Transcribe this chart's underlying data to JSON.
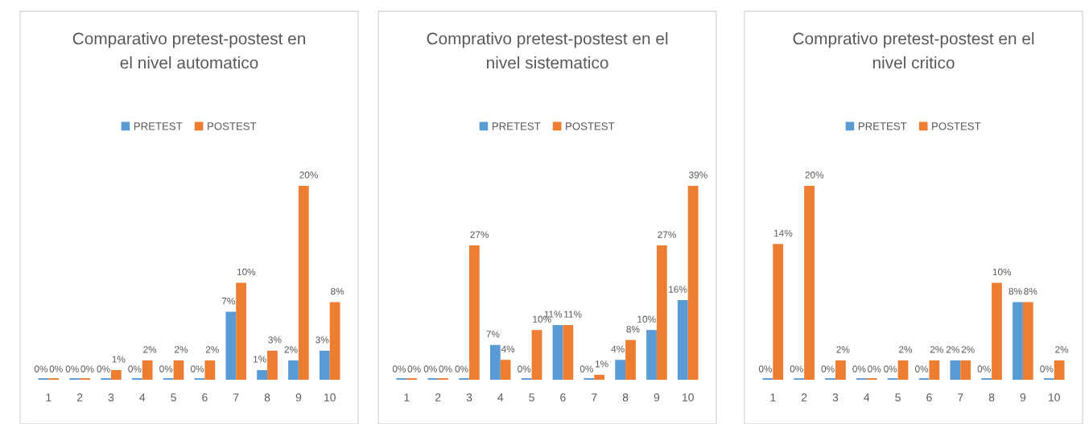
{
  "chart_data": [
    {
      "type": "bar",
      "title": "Comparativo pretest-postest en el nivel automatico",
      "categories": [
        "1",
        "2",
        "3",
        "4",
        "5",
        "6",
        "7",
        "8",
        "9",
        "10"
      ],
      "legend": "top",
      "series": [
        {
          "name": "PRETEST",
          "color": "#5b9bd5",
          "values": [
            0,
            0,
            0,
            0,
            0,
            0,
            7,
            1,
            2,
            3
          ],
          "value_labels": [
            "0%",
            "0%",
            "0%",
            "0%",
            "0%",
            "0%",
            "7%",
            "1%",
            "2%",
            "3%"
          ]
        },
        {
          "name": "POSTEST",
          "color": "#ed7d31",
          "values": [
            0,
            0,
            1,
            2,
            2,
            2,
            10,
            3,
            20,
            8
          ],
          "value_labels": [
            "0%",
            "0%",
            "1%",
            "2%",
            "2%",
            "2%",
            "10%",
            "3%",
            "20%",
            "8%"
          ]
        }
      ]
    },
    {
      "type": "bar",
      "title": "Comprativo pretest-postest en el nivel sistematico",
      "categories": [
        "1",
        "2",
        "3",
        "4",
        "5",
        "6",
        "7",
        "8",
        "9",
        "10"
      ],
      "legend": "top",
      "series": [
        {
          "name": "PRETEST",
          "color": "#5b9bd5",
          "values": [
            0,
            0,
            0,
            7,
            0,
            11,
            0,
            4,
            10,
            16
          ],
          "value_labels": [
            "0%",
            "0%",
            "0%",
            "7%",
            "0%",
            "11%",
            "0%",
            "4%",
            "10%",
            "16%"
          ]
        },
        {
          "name": "POSTEST",
          "color": "#ed7d31",
          "values": [
            0,
            0,
            27,
            4,
            10,
            11,
            1,
            8,
            27,
            39
          ],
          "value_labels": [
            "0%",
            "0%",
            "27%",
            "4%",
            "10%",
            "11%",
            "1%",
            "8%",
            "27%",
            "39%"
          ]
        }
      ]
    },
    {
      "type": "bar",
      "title": "Comprativo pretest-postest en el nivel critico",
      "categories": [
        "1",
        "2",
        "3",
        "4",
        "5",
        "6",
        "7",
        "8",
        "9",
        "10"
      ],
      "legend": "top",
      "series": [
        {
          "name": "PRETEST",
          "color": "#5b9bd5",
          "values": [
            0,
            0,
            0,
            0,
            0,
            0,
            2,
            0,
            8,
            0
          ],
          "value_labels": [
            "0%",
            "0%",
            "0%",
            "0%",
            "0%",
            "0%",
            "2%",
            "0%",
            "8%",
            "0%"
          ]
        },
        {
          "name": "POSTEST",
          "color": "#ed7d31",
          "values": [
            14,
            20,
            2,
            0,
            2,
            2,
            2,
            10,
            8,
            2
          ],
          "value_labels": [
            "14%",
            "20%",
            "2%",
            "0%",
            "2%",
            "2%",
            "2%",
            "10%",
            "8%",
            "2%"
          ]
        }
      ]
    }
  ]
}
